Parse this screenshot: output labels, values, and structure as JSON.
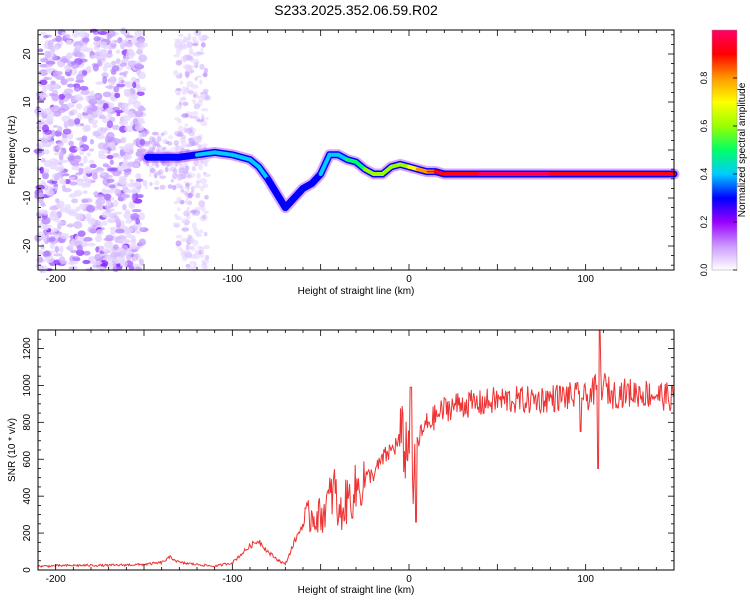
{
  "title": "S233.2025.352.06.59.R02",
  "chart_data": [
    {
      "type": "heatmap",
      "panel": "top",
      "xlabel": "Height of straight line (km)",
      "ylabel": "Frequency (Hz)",
      "xlim": [
        -210,
        150
      ],
      "ylim": [
        -25,
        25
      ],
      "xticks": [
        -200,
        -100,
        0,
        100
      ],
      "yticks": [
        -20,
        -10,
        0,
        10,
        20
      ],
      "colorbar": {
        "label": "Normalized spectral amplitude",
        "range": [
          0,
          1
        ],
        "ticks": [
          0.0,
          0.2,
          0.4,
          0.6,
          0.8
        ],
        "colors": [
          "#ffffff",
          "#cc99ff",
          "#9900ff",
          "#0000ff",
          "#00ccff",
          "#00ff66",
          "#99ff00",
          "#ffff00",
          "#ff9900",
          "#ff0000",
          "#ff0066"
        ]
      },
      "ridge": {
        "x": [
          -148,
          -140,
          -130,
          -120,
          -110,
          -100,
          -95,
          -90,
          -85,
          -80,
          -75,
          -70,
          -65,
          -60,
          -55,
          -50,
          -45,
          -40,
          -35,
          -30,
          -25,
          -20,
          -15,
          -10,
          -5,
          0,
          5,
          10,
          15,
          20,
          40,
          60,
          80,
          90,
          100,
          110,
          130,
          150
        ],
        "freq": [
          -1.5,
          -1.5,
          -1.5,
          -1.0,
          -0.5,
          -1.0,
          -1.5,
          -2.0,
          -3.5,
          -6.0,
          -9.0,
          -12.0,
          -10.0,
          -8.0,
          -7.0,
          -5.0,
          -1.0,
          -1.0,
          -2.0,
          -2.5,
          -4.0,
          -5.0,
          -5.0,
          -3.5,
          -3.0,
          -3.5,
          -4.0,
          -4.5,
          -4.5,
          -5.0,
          -5.0,
          -5.0,
          -5.0,
          -5.0,
          -5.0,
          -5.0,
          -5.0,
          -5.0
        ],
        "amplitude": [
          0.25,
          0.3,
          0.3,
          0.35,
          0.35,
          0.35,
          0.4,
          0.4,
          0.35,
          0.35,
          0.3,
          0.25,
          0.3,
          0.3,
          0.3,
          0.35,
          0.35,
          0.4,
          0.45,
          0.45,
          0.55,
          0.6,
          0.6,
          0.55,
          0.6,
          0.65,
          0.7,
          0.8,
          0.85,
          0.9,
          0.95,
          0.95,
          0.95,
          0.9,
          0.85,
          0.85,
          0.85,
          0.85
        ]
      }
    },
    {
      "type": "line",
      "panel": "bottom",
      "xlabel": "Height of straight line (km)",
      "ylabel": "SNR (10 * v/v)",
      "xlim": [
        -210,
        150
      ],
      "ylim": [
        0,
        1300
      ],
      "xticks": [
        -200,
        -100,
        0,
        100
      ],
      "yticks": [
        0,
        200,
        400,
        600,
        800,
        1000,
        1200
      ],
      "series": [
        {
          "name": "SNR",
          "color": "#ee3333",
          "x": [
            -210,
            -190,
            -170,
            -150,
            -140,
            -135,
            -130,
            -120,
            -110,
            -100,
            -90,
            -85,
            -80,
            -75,
            -70,
            -65,
            -60,
            -55,
            -50,
            -45,
            -42,
            -40,
            -35,
            -30,
            -25,
            -20,
            -15,
            -10,
            -5,
            0,
            2,
            5,
            10,
            15,
            20,
            25,
            30,
            40,
            50,
            60,
            70,
            80,
            90,
            95,
            100,
            105,
            108,
            110,
            115,
            120,
            130,
            140,
            150
          ],
          "y": [
            20,
            25,
            25,
            30,
            40,
            70,
            40,
            30,
            20,
            40,
            130,
            160,
            100,
            60,
            30,
            150,
            250,
            300,
            290,
            380,
            450,
            280,
            380,
            430,
            500,
            520,
            600,
            650,
            700,
            650,
            400,
            700,
            790,
            830,
            870,
            890,
            900,
            900,
            920,
            920,
            920,
            930,
            940,
            940,
            930,
            970,
            1000,
            1000,
            950,
            960,
            960,
            950,
            930
          ]
        }
      ]
    }
  ]
}
